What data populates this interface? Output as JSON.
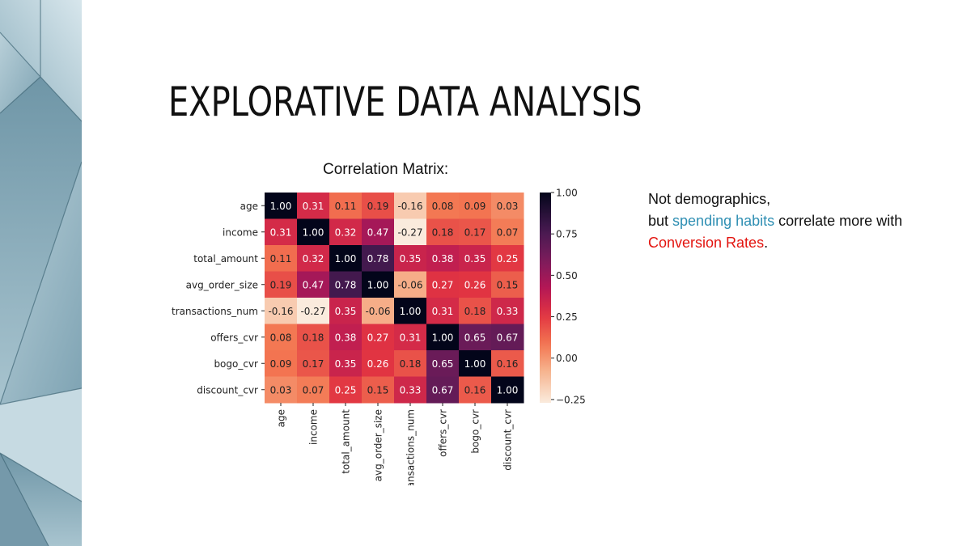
{
  "slide": {
    "title": "EXPLORATIVE DATA ANALYSIS",
    "note": {
      "line1": "Not demographics,",
      "line2_prefix": "but ",
      "line2_highlight": "spending habits",
      "line2_suffix": " correlate more with",
      "line3_highlight": "Conversion Rates",
      "line3_suffix": ".",
      "highlight_blue": "#2f8fb3",
      "highlight_red": "#e3140f"
    }
  },
  "chart_data": {
    "type": "heatmap",
    "title": "Correlation Matrix:",
    "row_labels": [
      "age",
      "income",
      "total_amount",
      "avg_order_size",
      "transactions_num",
      "offers_cvr",
      "bogo_cvr",
      "discount_cvr"
    ],
    "col_labels": [
      "age",
      "income",
      "total_amount",
      "avg_order_size",
      "transactions_num",
      "offers_cvr",
      "bogo_cvr",
      "discount_cvr"
    ],
    "values": [
      [
        1.0,
        0.31,
        0.11,
        0.19,
        -0.16,
        0.08,
        0.09,
        0.03
      ],
      [
        0.31,
        1.0,
        0.32,
        0.47,
        -0.27,
        0.18,
        0.17,
        0.07
      ],
      [
        0.11,
        0.32,
        1.0,
        0.78,
        0.35,
        0.38,
        0.35,
        0.25
      ],
      [
        0.19,
        0.47,
        0.78,
        1.0,
        -0.06,
        0.27,
        0.26,
        0.15
      ],
      [
        -0.16,
        -0.27,
        0.35,
        -0.06,
        1.0,
        0.31,
        0.18,
        0.33
      ],
      [
        0.08,
        0.18,
        0.38,
        0.27,
        0.31,
        1.0,
        0.65,
        0.67
      ],
      [
        0.09,
        0.17,
        0.35,
        0.26,
        0.18,
        0.65,
        1.0,
        0.16
      ],
      [
        0.03,
        0.07,
        0.25,
        0.15,
        0.33,
        0.67,
        0.16,
        1.0
      ]
    ],
    "value_format": "0.00",
    "colorbar": {
      "min": -0.27,
      "max": 1.0,
      "ticks": [
        1.0,
        0.75,
        0.5,
        0.25,
        0.0,
        -0.25
      ],
      "tick_labels": [
        "1.00",
        "0.75",
        "0.50",
        "0.25",
        "0.00",
        "−0.25"
      ]
    },
    "colormap": "rocket"
  }
}
